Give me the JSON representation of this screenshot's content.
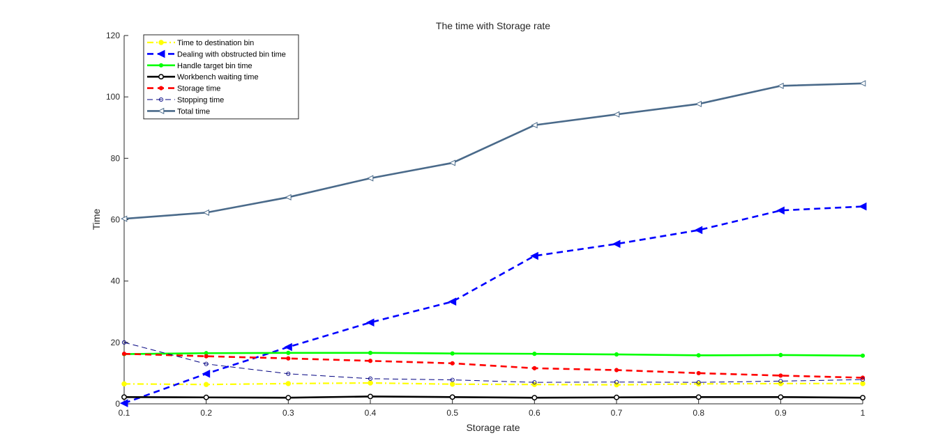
{
  "chart_data": {
    "type": "line",
    "title": "The time with Storage rate",
    "xlabel": "Storage rate",
    "ylabel": "Time",
    "xlim": [
      0.1,
      1
    ],
    "ylim": [
      0,
      120
    ],
    "xticks": [
      "0.1",
      "0.2",
      "0.3",
      "0.4",
      "0.5",
      "0.6",
      "0.7",
      "0.8",
      "0.9",
      "1"
    ],
    "yticks": [
      "0",
      "20",
      "40",
      "60",
      "80",
      "100",
      "120"
    ],
    "grid": false,
    "legend_position": "top-left",
    "x": [
      0.1,
      0.2,
      0.3,
      0.4,
      0.5,
      0.6,
      0.7,
      0.8,
      0.9,
      1.0
    ],
    "series": [
      {
        "name": "Time to destination bin",
        "color": "#ffff00",
        "line": "dashdot",
        "marker": "circle-filled",
        "values": [
          6.5,
          6.3,
          6.6,
          6.8,
          6.4,
          6.3,
          6.2,
          6.5,
          6.6,
          6.6
        ]
      },
      {
        "name": "Dealing with obstructed bin time",
        "color": "#0000ff",
        "line": "dashed",
        "marker": "triangle-left-filled",
        "values": [
          0.2,
          9.8,
          18.5,
          26.5,
          33.3,
          48.2,
          52.1,
          56.6,
          63.0,
          64.3
        ]
      },
      {
        "name": "Handle target bin time",
        "color": "#00ff00",
        "line": "solid",
        "marker": "dot",
        "values": [
          16.2,
          16.5,
          16.6,
          16.6,
          16.4,
          16.3,
          16.1,
          15.8,
          15.9,
          15.7
        ]
      },
      {
        "name": "Workbench waiting time",
        "color": "#000000",
        "line": "solid",
        "marker": "circle-open",
        "values": [
          2.2,
          2.1,
          2.0,
          2.4,
          2.2,
          2.0,
          2.1,
          2.2,
          2.2,
          2.0
        ]
      },
      {
        "name": "Storage time",
        "color": "#ff0000",
        "line": "dashed",
        "marker": "dot",
        "values": [
          16.3,
          15.5,
          14.8,
          14.0,
          13.2,
          11.6,
          11.0,
          10.0,
          9.2,
          8.5
        ]
      },
      {
        "name": "Stopping time",
        "color": "#000080",
        "line": "dashed-thin",
        "marker": "circle-open-small",
        "values": [
          20.0,
          13.0,
          9.8,
          8.2,
          7.8,
          7.0,
          7.1,
          7.0,
          7.4,
          7.9
        ]
      },
      {
        "name": "Total time",
        "color": "#4a6a8a",
        "line": "solid",
        "marker": "triangle-left-open",
        "values": [
          60.3,
          62.3,
          67.3,
          73.5,
          78.5,
          90.8,
          94.3,
          97.7,
          103.6,
          104.4
        ]
      }
    ]
  }
}
